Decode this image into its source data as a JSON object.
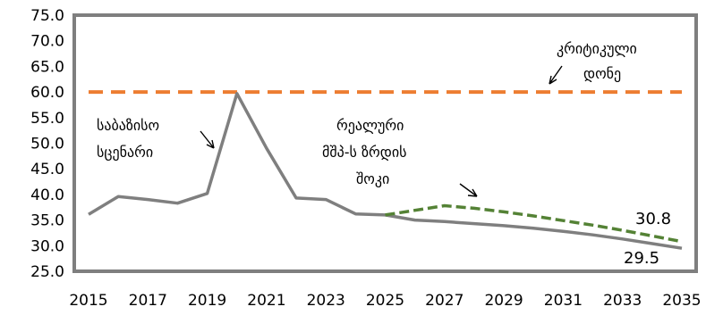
{
  "chart_data": {
    "type": "line",
    "title": "",
    "xlabel": "",
    "ylabel": "",
    "ylim": [
      25.0,
      75.0
    ],
    "y_ticks": [
      "25.0",
      "30.0",
      "35.0",
      "40.0",
      "45.0",
      "50.0",
      "55.0",
      "60.0",
      "65.0",
      "70.0",
      "75.0"
    ],
    "x_ticks": [
      "2015",
      "2017",
      "2019",
      "2021",
      "2023",
      "2025",
      "2027",
      "2029",
      "2031",
      "2033",
      "2035"
    ],
    "grid": false,
    "legend": "none",
    "series": [
      {
        "name": "საბაზისო სცენარი",
        "color": "#7f7f7f",
        "style": "solid",
        "points": [
          [
            2015,
            36.1
          ],
          [
            2016,
            39.6
          ],
          [
            2017,
            39.0
          ],
          [
            2018,
            38.3
          ],
          [
            2019,
            40.2
          ],
          [
            2020,
            59.7
          ],
          [
            2021,
            49.0
          ],
          [
            2022,
            39.3
          ],
          [
            2023,
            39.0
          ],
          [
            2024,
            36.2
          ],
          [
            2025,
            36.0
          ],
          [
            2026,
            35.0
          ],
          [
            2027,
            34.7
          ],
          [
            2028,
            34.3
          ],
          [
            2029,
            33.9
          ],
          [
            2030,
            33.4
          ],
          [
            2031,
            32.8
          ],
          [
            2032,
            32.1
          ],
          [
            2033,
            31.3
          ],
          [
            2034,
            30.4
          ],
          [
            2035,
            29.5
          ]
        ],
        "end_label": "29.5"
      },
      {
        "name": "რეალური მშპ-ს ზრდის შოკი",
        "color": "#548235",
        "style": "dashed",
        "points": [
          [
            2025,
            36.0
          ],
          [
            2026,
            36.9
          ],
          [
            2027,
            37.8
          ],
          [
            2028,
            37.3
          ],
          [
            2029,
            36.6
          ],
          [
            2030,
            35.8
          ],
          [
            2031,
            34.9
          ],
          [
            2032,
            34.0
          ],
          [
            2033,
            33.0
          ],
          [
            2034,
            31.9
          ],
          [
            2035,
            30.8
          ]
        ],
        "end_label": "30.8"
      },
      {
        "name": "კრიტიკული დონე",
        "color": "#ed7d31",
        "style": "dashed",
        "points": [
          [
            2015,
            60.0
          ],
          [
            2035,
            60.0
          ]
        ]
      }
    ],
    "annotations": {
      "baseline": [
        "საბაზისო",
        "სცენარი"
      ],
      "shock": [
        "რეალური",
        "მშპ-ს ზრდის",
        "შოკი"
      ],
      "critical": [
        "კრიტიკული",
        "დონე"
      ]
    }
  }
}
